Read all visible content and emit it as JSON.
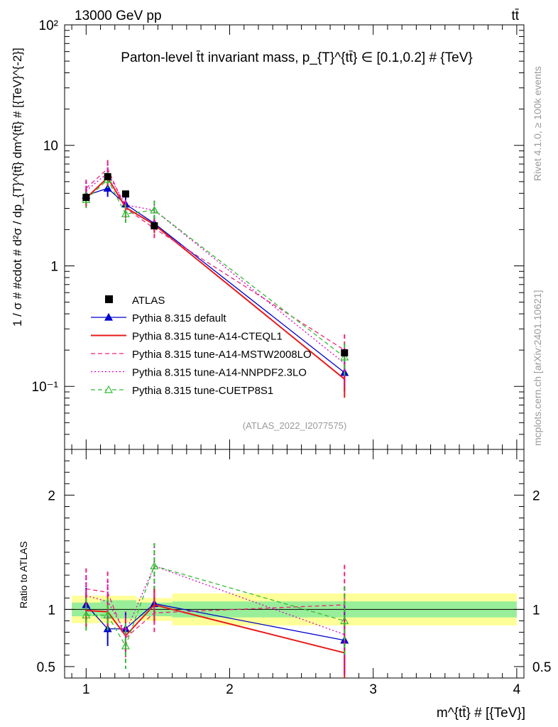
{
  "header": {
    "energy_label": "13000 GeV pp",
    "process_label": "tt̄"
  },
  "side_labels": {
    "rivet": "Rivet 4.1.0, ≥ 100k events",
    "mcplots": "mcplots.cern.ch [arXiv:2401.10621]"
  },
  "chart_data": {
    "type": "line",
    "title": "Parton-level t̄t invariant mass, p_{T}^{tt̄} ∈ [0.1,0.2] # {TeV}",
    "analysis_tag": "(ATLAS_2022_I2077575)",
    "xlabel": "m^{tt̄} # [{TeV}]",
    "ylabel": "1 / σ # #cdot # d²σ / dp_{T}^{tt̄} dm^{tt̄} # [{TeV}^{-2}]",
    "ratio_ylabel": "Ratio to ATLAS",
    "xlim": [
      0.85,
      4.05
    ],
    "ylim": [
      0.03,
      100
    ],
    "yscale": "log",
    "ratio_ylim": [
      0.4,
      2.4
    ],
    "x_ticks": [
      "1",
      "2",
      "3",
      "4"
    ],
    "y_ticks": [
      "10⁻¹",
      "1",
      "10",
      "10²"
    ],
    "ratio_ticks": [
      "0.5",
      "1",
      "2"
    ],
    "x": [
      1.0,
      1.15,
      1.275,
      1.475,
      2.8
    ],
    "data": {
      "name": "ATLAS",
      "values": [
        3.7,
        5.5,
        3.95,
        2.15,
        0.19
      ],
      "band_x_edges": [
        0.9,
        1.1,
        1.2,
        1.35,
        1.6,
        4.0
      ],
      "band_stat_frac": [
        0.06,
        0.08,
        0.08,
        0.06,
        0.07
      ],
      "band_total_frac": [
        0.12,
        0.12,
        0.12,
        0.1,
        0.14
      ]
    },
    "series": [
      {
        "name": "Pythia 8.315 default",
        "color": "#0000cc",
        "dash": "",
        "marker": "triangle-filled",
        "values": [
          3.85,
          4.4,
          3.25,
          2.25,
          0.13
        ],
        "ratio": [
          1.04,
          0.83,
          0.83,
          1.05,
          0.73
        ],
        "ratio_err": [
          0.15,
          0.15,
          0.15,
          0.15,
          0.3
        ]
      },
      {
        "name": "Pythia 8.315 tune-A14-CTEQL1",
        "color": "#e61a1a",
        "dash": "",
        "marker": "none",
        "values": [
          3.65,
          5.4,
          3.05,
          2.2,
          0.115
        ],
        "ratio": [
          0.99,
          0.98,
          0.77,
          1.04,
          0.62
        ],
        "ratio_err": [
          0.15,
          0.15,
          0.15,
          0.15,
          0.3
        ]
      },
      {
        "name": "Pythia 8.315 tune-A14-MSTW2008LO",
        "color": "#ee2277",
        "dash": "6,4",
        "marker": "none",
        "values": [
          4.4,
          6.4,
          3.0,
          2.05,
          0.2
        ],
        "ratio": [
          1.18,
          1.15,
          0.75,
          0.97,
          1.04
        ],
        "ratio_err": [
          0.18,
          0.18,
          0.18,
          0.18,
          0.35
        ]
      },
      {
        "name": "Pythia 8.315 tune-A14-NNPDF2.3LO",
        "color": "#dd00cc",
        "dash": "2,3",
        "marker": "none",
        "values": [
          4.2,
          5.9,
          3.2,
          2.9,
          0.155
        ],
        "ratio": [
          1.12,
          1.07,
          0.8,
          1.38,
          0.78
        ],
        "ratio_err": [
          0.18,
          0.18,
          0.18,
          0.2,
          0.35
        ]
      },
      {
        "name": "Pythia 8.315 tune-CUETP8S1",
        "color": "#33bb33",
        "dash": "6,4",
        "marker": "triangle-open",
        "values": [
          3.55,
          5.2,
          2.7,
          2.9,
          0.175
        ],
        "ratio": [
          0.95,
          0.95,
          0.68,
          1.38,
          0.9
        ],
        "ratio_err": [
          0.15,
          0.15,
          0.2,
          0.2,
          0.3
        ]
      }
    ]
  }
}
